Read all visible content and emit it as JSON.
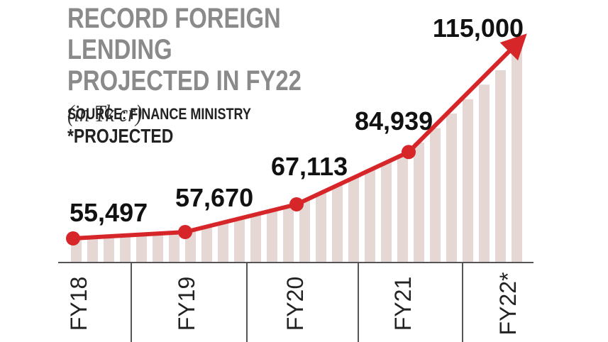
{
  "header": {
    "title_main": "RECORD FOREIGN LENDING PROJECTED IN FY22",
    "title_unit": "(in Tk cr)",
    "source": "SOURCE: FINANCE MINISTRY",
    "note": "*PROJECTED"
  },
  "colors": {
    "line": "#d7262a",
    "bar": "#e5d7d3",
    "title": "#8a8a8a",
    "text": "#222222"
  },
  "chart_data": {
    "type": "line",
    "title": "RECORD FOREIGN LENDING PROJECTED IN FY22 (in Tk cr)",
    "categories": [
      "FY18",
      "FY19",
      "FY20",
      "FY21",
      "FY22*"
    ],
    "series": [
      {
        "values": [
          55497,
          57670,
          67113,
          84939,
          115000
        ]
      }
    ],
    "data_labels": [
      "55,497",
      "57,670",
      "67,113",
      "84,939",
      "115,000"
    ],
    "ylabel": "",
    "xlabel": "",
    "grid": false
  }
}
